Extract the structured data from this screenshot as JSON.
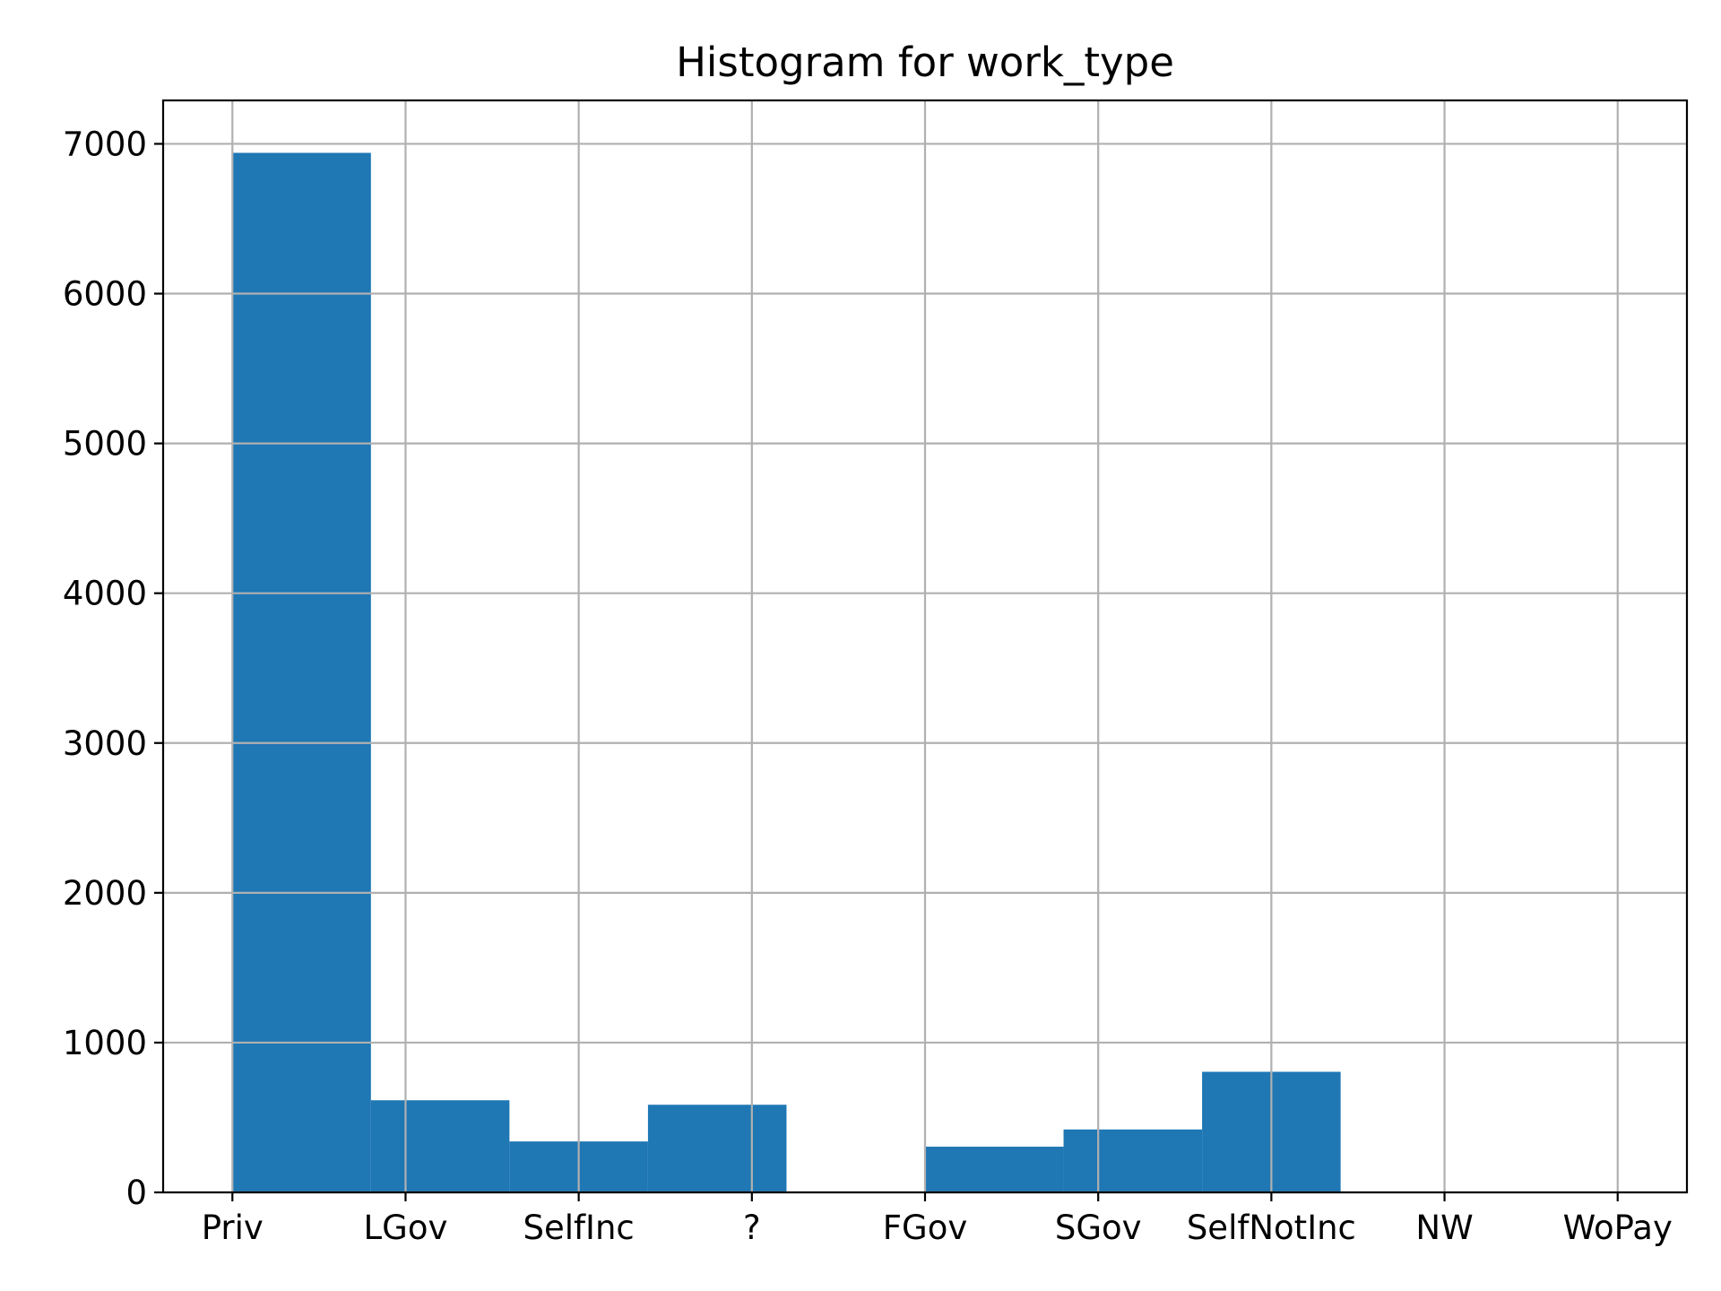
{
  "chart_data": {
    "type": "bar",
    "title": "Histogram for work_type",
    "xlabel": "",
    "ylabel": "",
    "categories": [
      "Priv",
      "LGov",
      "SelfInc",
      "?",
      "FGov",
      "SGov",
      "SelfNotInc",
      "NW",
      "WoPay"
    ],
    "bins": [
      {
        "x0": 0.0,
        "x1": 0.8,
        "value": 6940
      },
      {
        "x0": 0.8,
        "x1": 1.6,
        "value": 615
      },
      {
        "x0": 1.6,
        "x1": 2.4,
        "value": 340
      },
      {
        "x0": 2.4,
        "x1": 3.2,
        "value": 585
      },
      {
        "x0": 3.2,
        "x1": 4.0,
        "value": 0
      },
      {
        "x0": 4.0,
        "x1": 4.8,
        "value": 305
      },
      {
        "x0": 4.8,
        "x1": 5.6,
        "value": 420
      },
      {
        "x0": 5.6,
        "x1": 6.4,
        "value": 805
      },
      {
        "x0": 6.4,
        "x1": 7.2,
        "value": 0
      },
      {
        "x0": 7.2,
        "x1": 8.0,
        "value": 0
      }
    ],
    "xlim": [
      -0.4,
      8.4
    ],
    "ylim": [
      0,
      7290
    ],
    "yticks": [
      0,
      1000,
      2000,
      3000,
      4000,
      5000,
      6000,
      7000
    ],
    "bar_color": "#1f77b4",
    "grid": true
  }
}
